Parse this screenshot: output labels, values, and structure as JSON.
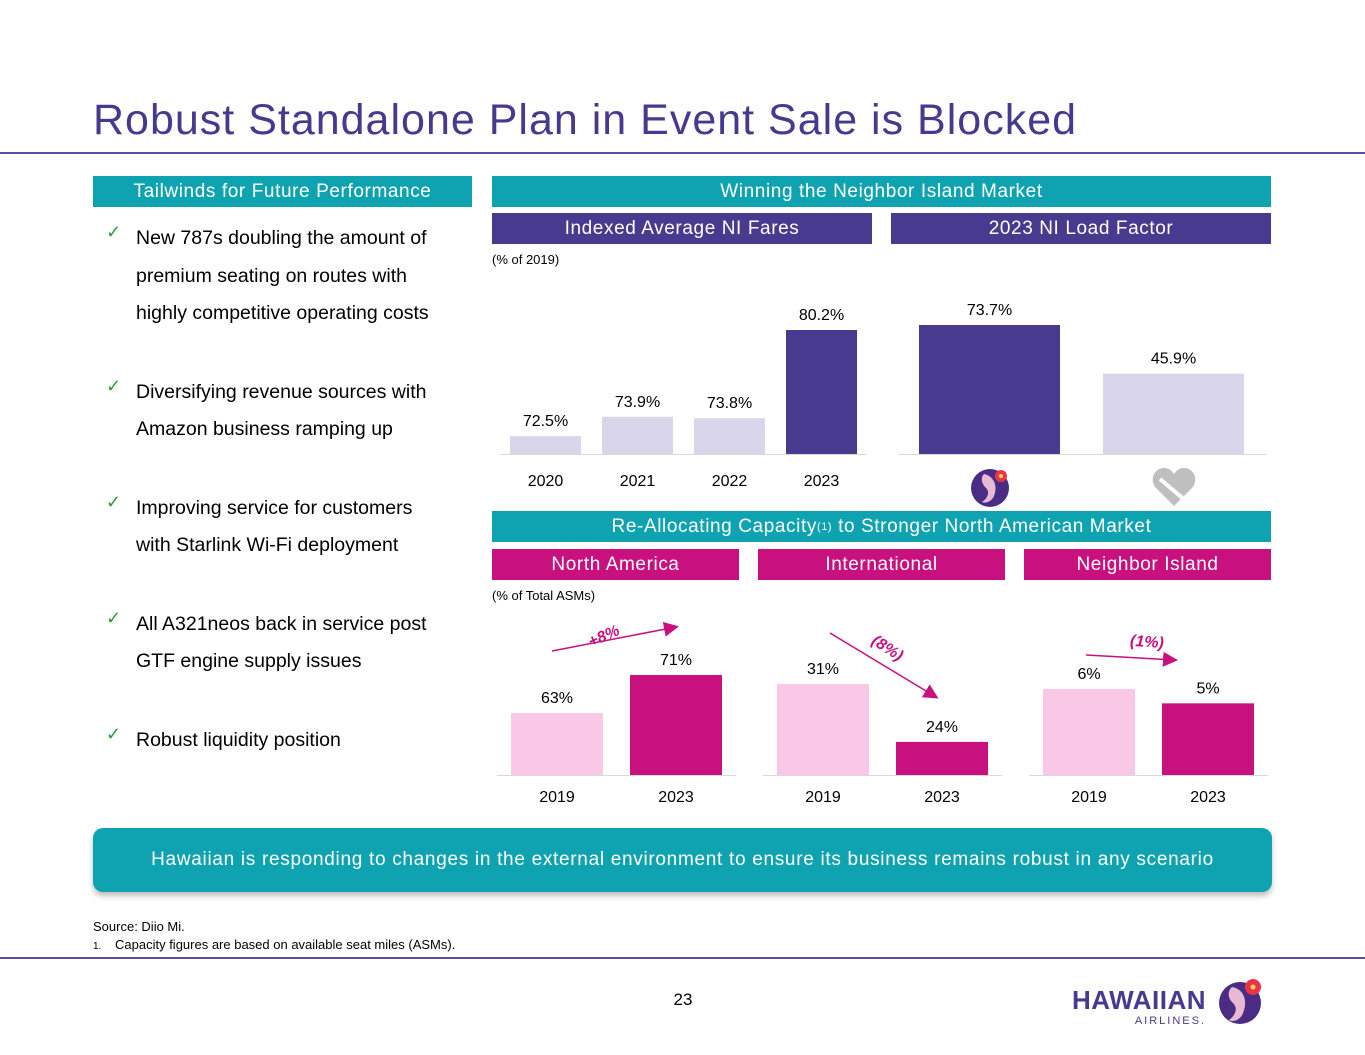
{
  "title": "Robust Standalone Plan in Event Sale is Blocked",
  "left_panel": {
    "header": "Tailwinds for Future Performance",
    "bullets": [
      {
        "lines": [
          "New 787s doubling the amount of",
          "premium seating on routes with",
          "highly competitive operating costs"
        ]
      },
      {
        "lines": [
          "Diversifying revenue sources with",
          "Amazon business ramping up"
        ]
      },
      {
        "lines": [
          "Improving service for customers",
          "with Starlink Wi-Fi deployment"
        ]
      },
      {
        "lines": [
          "All A321neos back in service post",
          "GTF engine supply issues"
        ]
      },
      {
        "lines": [
          "Robust liquidity position"
        ]
      }
    ]
  },
  "top_section": {
    "header": "Winning the Neighbor Island Market",
    "fares_header": "Indexed Average NI Fares",
    "fares_note": "(% of 2019)",
    "load_header": "2023 NI Load Factor"
  },
  "bottom_section": {
    "header_pre": "Re-Allocating Capacity",
    "header_sup": "(1)",
    "header_post": " to Stronger North American Market",
    "note": "(% of Total ASMs)",
    "sub_headers": [
      "North America",
      "International",
      "Neighbor Island"
    ],
    "changes": [
      "+8%",
      "(8%)",
      "(1%)"
    ]
  },
  "colors": {
    "purple": "#473A8F",
    "light_purple": "#D9D6EB",
    "magenta": "#C8107F",
    "light_pink": "#F9C8E6",
    "teal": "#0FA3B1"
  },
  "icons": [
    "hawaiian-logo-icon",
    "gray-heart-icon",
    "check-icon"
  ],
  "chart_data": [
    {
      "type": "bar",
      "title": "Indexed Average NI Fares",
      "categories": [
        "2020",
        "2021",
        "2022",
        "2023"
      ],
      "values": [
        72.5,
        73.9,
        73.8,
        80.2
      ],
      "labels": [
        "72.5%",
        "73.9%",
        "73.8%",
        "80.2%"
      ],
      "ylim": [
        71.2,
        80.8
      ],
      "unit": "% of 2019"
    },
    {
      "type": "bar",
      "title": "2023 NI Load Factor",
      "categories": [
        "Hawaiian",
        "Competitor"
      ],
      "values": [
        73.7,
        45.9
      ],
      "labels": [
        "73.7%",
        "45.9%"
      ],
      "ylim": [
        0,
        74
      ]
    },
    {
      "type": "bar",
      "title": "North America",
      "categories": [
        "2019",
        "2023"
      ],
      "values": [
        63,
        71
      ],
      "labels": [
        "63%",
        "71%"
      ],
      "ylim": [
        50,
        72
      ]
    },
    {
      "type": "bar",
      "title": "International",
      "categories": [
        "2019",
        "2023"
      ],
      "values": [
        31,
        24
      ],
      "labels": [
        "31%",
        "24%"
      ],
      "ylim": [
        20,
        40
      ]
    },
    {
      "type": "bar",
      "title": "Neighbor Island",
      "categories": [
        "2019",
        "2023"
      ],
      "values": [
        6,
        5
      ],
      "labels": [
        "6%",
        "5%"
      ],
      "ylim": [
        0,
        7
      ]
    }
  ],
  "banner": "Hawaiian is responding to changes in the external environment to ensure its business remains robust in any scenario",
  "source": "Source: Diio Mi.",
  "footnote_num": "1.",
  "footnote": "Capacity figures are based on available seat miles (ASMs).",
  "page_number": "23",
  "logo": {
    "name": "HAWAIIAN",
    "sub": "AIRLINES."
  }
}
